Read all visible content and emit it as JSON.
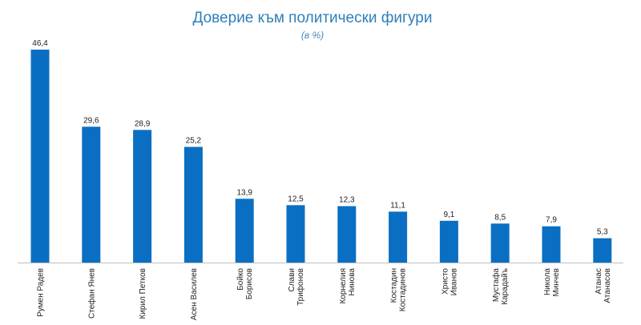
{
  "chart_data": {
    "type": "bar",
    "title": "Доверие към политически фигури",
    "subtitle": "(в %)",
    "categories": [
      "Румен Радев",
      "Стефан Янев",
      "Кирил Петков",
      "Асен Василев",
      "Бойко Борисов",
      "Слави Трифонов",
      "Корнелия Нинова",
      "Костадин Костадинов",
      "Христо Иванов",
      "Мустафа Карадайъ",
      "Никола Минчев",
      "Атанас Атанасов"
    ],
    "category_lines": [
      [
        "Румен Радев"
      ],
      [
        "Стефан Янев"
      ],
      [
        "Кирил Петков"
      ],
      [
        "Асен Василев"
      ],
      [
        "Бойко",
        "Борисов"
      ],
      [
        "Слави",
        "Трифонов"
      ],
      [
        "Корнелия",
        "Нинова"
      ],
      [
        "Костадин",
        "Костадинов"
      ],
      [
        "Христо",
        "Иванов"
      ],
      [
        "Мустафа",
        "Карадайъ"
      ],
      [
        "Никола",
        "Минчев"
      ],
      [
        "Атанас",
        "Атанасов"
      ]
    ],
    "values": [
      46.4,
      29.6,
      28.9,
      25.2,
      13.9,
      12.5,
      12.3,
      11.1,
      9.1,
      8.5,
      7.9,
      5.3
    ],
    "value_labels": [
      "46,4",
      "29,6",
      "28,9",
      "25,2",
      "13,9",
      "12,5",
      "12,3",
      "11,1",
      "9,1",
      "8,5",
      "7,9",
      "5,3"
    ],
    "xlabel": "",
    "ylabel": "",
    "ylim": [
      0,
      46.4
    ],
    "grid": false,
    "legend": "none",
    "bar_color": "#0a6fc2",
    "axis_color": "#bfbfbf"
  }
}
